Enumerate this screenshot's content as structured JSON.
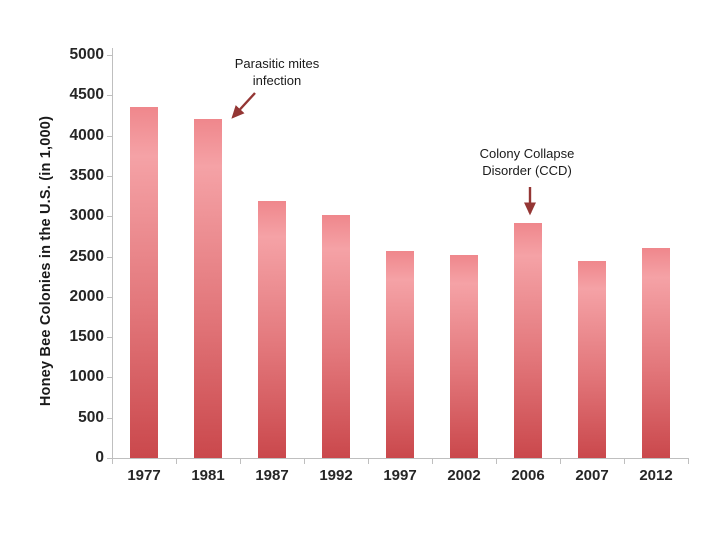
{
  "chart_data": {
    "type": "bar",
    "title": "",
    "ylabel": "Honey Bee Colonies in the U.S. (in 1,000)",
    "xlabel": "",
    "categories": [
      "1977",
      "1981",
      "1987",
      "1992",
      "1997",
      "2002",
      "2006",
      "2007",
      "2012"
    ],
    "values": [
      4350,
      4210,
      3190,
      3020,
      2570,
      2520,
      2920,
      2440,
      2610
    ],
    "ylim": [
      0,
      5000
    ],
    "ytick_step": 500,
    "yticks": [
      0,
      500,
      1000,
      1500,
      2000,
      2500,
      3000,
      3500,
      4000,
      4500,
      5000
    ],
    "grid": false,
    "legend": "none",
    "annotations": [
      {
        "lines": [
          "Parasitic mites",
          "infection"
        ],
        "target_category": "1981"
      },
      {
        "lines": [
          "Colony Collapse",
          "Disorder (CCD)"
        ],
        "target_category": "2006"
      }
    ],
    "colors": {
      "bar_gradient_top": "#ef878c",
      "bar_gradient_light": "#f5a2a6",
      "bar_gradient_mid": "#e2767a",
      "bar_gradient_bottom": "#ca484c",
      "axis_line": "#bfbfbf",
      "tick_label_text": "#262626",
      "axis_title_text": "#1a1a1a",
      "annotation_text": "#1a1a1a",
      "annotation_arrow": "#943634",
      "background": "#ffffff"
    }
  }
}
